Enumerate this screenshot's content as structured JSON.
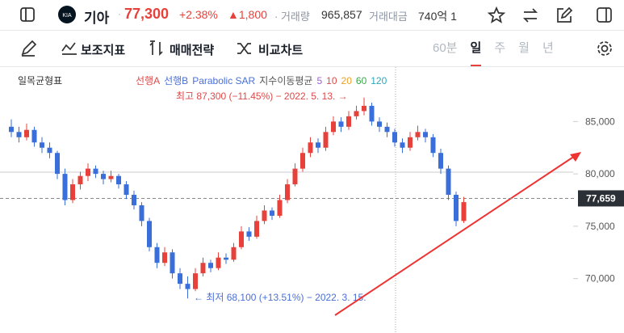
{
  "header": {
    "name": "기아",
    "price": "77,300",
    "change_pct": "+2.38%",
    "change": "▲1,800",
    "volume_label": "· 거래량",
    "volume": "965,857",
    "amount_label": "거래대금",
    "amount": "740억 1"
  },
  "toolbar": {
    "indicators": "보조지표",
    "strategy": "매매전략",
    "compare": "비교차트",
    "periods": [
      "60분",
      "일",
      "주",
      "월",
      "년"
    ],
    "active_index": 1
  },
  "chart": {
    "legend_title": "일목균형표",
    "legend": [
      {
        "name": "선행A",
        "color": "#e04848"
      },
      {
        "name": "선행B",
        "color": "#4a6fd8"
      },
      {
        "name": "Parabolic SAR",
        "color": "#4a6fd8"
      },
      {
        "name": "지수이동평균",
        "color": "#555555"
      },
      {
        "name": "5",
        "color": "#a05cd8"
      },
      {
        "name": "10",
        "color": "#e04848"
      },
      {
        "name": "20",
        "color": "#f0a020"
      },
      {
        "name": "60",
        "color": "#3aa84a"
      },
      {
        "name": "120",
        "color": "#2aa8b8"
      }
    ],
    "high_note": "최고 87,300 (−11.45%) − 2022. 5. 13. →",
    "low_note": "← 최저 68,100 (+13.51%) − 2022. 3. 15.",
    "ylim": [
      64800,
      90200
    ],
    "yticks": [
      {
        "value": 70000,
        "label": "70,000"
      },
      {
        "value": 75000,
        "label": "75,000"
      },
      {
        "value": 80000,
        "label": "80,000"
      },
      {
        "value": 85000,
        "label": "85,000"
      }
    ],
    "current": {
      "value": 77659,
      "label": "77,659"
    },
    "up_color": "#e8403a",
    "down_color": "#3a6ed8",
    "candles": [
      [
        84500,
        85200,
        83500,
        84000
      ],
      [
        84000,
        84500,
        83000,
        83500
      ],
      [
        83500,
        84800,
        83200,
        84200
      ],
      [
        84200,
        84500,
        82600,
        83000
      ],
      [
        83000,
        83500,
        82000,
        82500
      ],
      [
        82500,
        83000,
        81500,
        82000
      ],
      [
        82000,
        82200,
        79500,
        80000
      ],
      [
        80000,
        80500,
        77000,
        77500
      ],
      [
        77500,
        79500,
        77200,
        79000
      ],
      [
        79000,
        80200,
        78500,
        79800
      ],
      [
        79800,
        81000,
        79300,
        80500
      ],
      [
        80500,
        80800,
        79600,
        80000
      ],
      [
        80000,
        80300,
        79000,
        79500
      ],
      [
        79500,
        80300,
        79200,
        79800
      ],
      [
        79800,
        80000,
        78600,
        79000
      ],
      [
        79000,
        79300,
        77600,
        78000
      ],
      [
        78000,
        78400,
        76600,
        77000
      ],
      [
        77000,
        77300,
        75000,
        75500
      ],
      [
        75500,
        75800,
        72600,
        73000
      ],
      [
        73000,
        73400,
        71000,
        71500
      ],
      [
        71500,
        73000,
        71200,
        72500
      ],
      [
        72500,
        72800,
        70000,
        70500
      ],
      [
        70500,
        71000,
        69000,
        69500
      ],
      [
        69500,
        70200,
        68100,
        69000
      ],
      [
        69000,
        71000,
        68800,
        70500
      ],
      [
        70500,
        72000,
        70200,
        71500
      ],
      [
        71500,
        71800,
        70600,
        71000
      ],
      [
        71000,
        72500,
        70800,
        72000
      ],
      [
        72000,
        72400,
        71400,
        71800
      ],
      [
        71800,
        73400,
        71600,
        73000
      ],
      [
        73000,
        75000,
        72800,
        74500
      ],
      [
        74500,
        74900,
        73600,
        74000
      ],
      [
        74000,
        76000,
        73800,
        75500
      ],
      [
        75500,
        77000,
        75200,
        76500
      ],
      [
        76500,
        76800,
        75600,
        76000
      ],
      [
        76000,
        78000,
        75800,
        77500
      ],
      [
        77500,
        79500,
        77200,
        79000
      ],
      [
        79000,
        81000,
        78800,
        80500
      ],
      [
        80500,
        82500,
        80200,
        82000
      ],
      [
        82000,
        83500,
        81600,
        83000
      ],
      [
        83000,
        83400,
        82000,
        82500
      ],
      [
        82500,
        84500,
        82200,
        84000
      ],
      [
        84000,
        85500,
        83700,
        85000
      ],
      [
        85000,
        85400,
        84000,
        84500
      ],
      [
        84500,
        86000,
        84200,
        85500
      ],
      [
        85500,
        86500,
        85200,
        86000
      ],
      [
        86000,
        87300,
        85600,
        86500
      ],
      [
        86500,
        86800,
        84600,
        85000
      ],
      [
        85000,
        85400,
        84000,
        84500
      ],
      [
        84500,
        84900,
        83500,
        84000
      ],
      [
        84000,
        84300,
        82600,
        83000
      ],
      [
        83000,
        83400,
        82000,
        82500
      ],
      [
        82500,
        84000,
        82200,
        83500
      ],
      [
        83500,
        84600,
        83200,
        84000
      ],
      [
        84000,
        84300,
        83000,
        83500
      ],
      [
        83500,
        83800,
        81600,
        82000
      ],
      [
        82000,
        82400,
        80000,
        80500
      ],
      [
        80500,
        80800,
        77500,
        78000
      ],
      [
        78000,
        78300,
        75000,
        75500
      ],
      [
        75500,
        77800,
        75300,
        77300
      ]
    ]
  }
}
